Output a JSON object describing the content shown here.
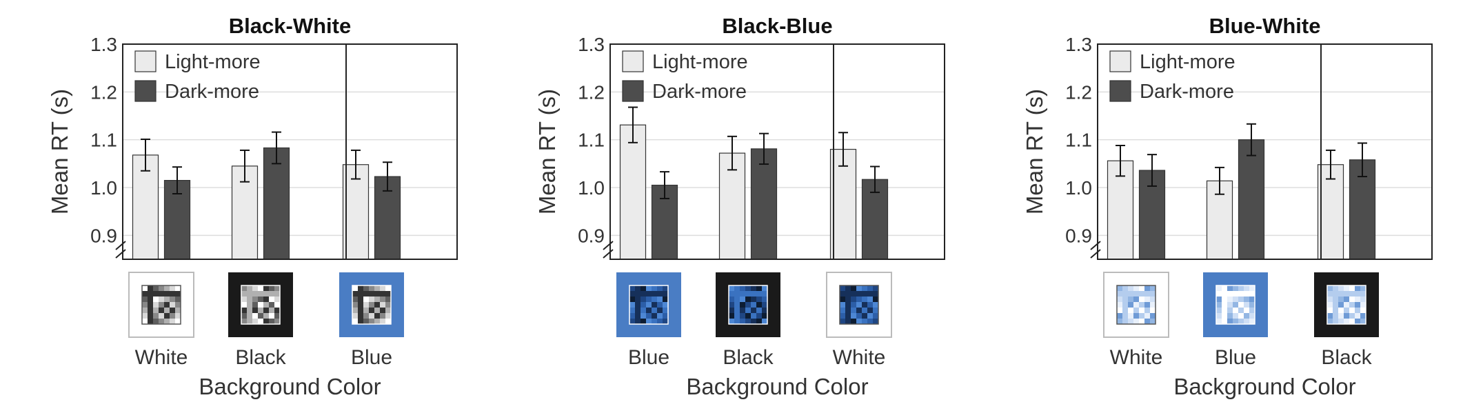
{
  "figure": {
    "colors": {
      "light_bar": "#ebebeb",
      "dark_bar": "#4d4d4d",
      "axis": "#222222",
      "grid": "#dddddd",
      "swatch_white": "#ffffff",
      "swatch_black": "#1a1a1a",
      "swatch_blue": "#4a7dc4"
    }
  },
  "chart_data": [
    {
      "type": "bar",
      "title": "Black-White",
      "ylabel": "Mean RT (s)",
      "xlabel": "Background Color",
      "ylim": [
        0.88,
        1.3
      ],
      "yticks": [
        "0.9",
        "1.0",
        "1.1",
        "1.2",
        "1.3"
      ],
      "axis_break": true,
      "grid": true,
      "legend_position": "top-left",
      "categories": [
        "White",
        "Black",
        "Blue"
      ],
      "category_backgrounds": [
        "white",
        "black",
        "blue"
      ],
      "stimulus_palette": "gray",
      "series": [
        {
          "name": "Light-more",
          "values": [
            1.068,
            1.045,
            1.048
          ],
          "errors": [
            0.033,
            0.033,
            0.03
          ]
        },
        {
          "name": "Dark-more",
          "values": [
            1.015,
            1.083,
            1.023
          ],
          "errors": [
            0.028,
            0.033,
            0.03
          ]
        }
      ]
    },
    {
      "type": "bar",
      "title": "Black-Blue",
      "ylabel": "Mean RT (s)",
      "xlabel": "Background Color",
      "ylim": [
        0.88,
        1.3
      ],
      "yticks": [
        "0.9",
        "1.0",
        "1.1",
        "1.2",
        "1.3"
      ],
      "axis_break": true,
      "grid": true,
      "legend_position": "top-left",
      "categories": [
        "Blue",
        "Black",
        "White"
      ],
      "category_backgrounds": [
        "blue",
        "black",
        "white"
      ],
      "stimulus_palette": "darkblue",
      "series": [
        {
          "name": "Light-more",
          "values": [
            1.131,
            1.072,
            1.08
          ],
          "errors": [
            0.037,
            0.035,
            0.035
          ]
        },
        {
          "name": "Dark-more",
          "values": [
            1.005,
            1.081,
            1.017
          ],
          "errors": [
            0.028,
            0.032,
            0.027
          ]
        }
      ]
    },
    {
      "type": "bar",
      "title": "Blue-White",
      "ylabel": "Mean RT (s)",
      "xlabel": "Background Color",
      "ylim": [
        0.88,
        1.3
      ],
      "yticks": [
        "0.9",
        "1.0",
        "1.1",
        "1.2",
        "1.3"
      ],
      "axis_break": true,
      "grid": true,
      "legend_position": "top-left",
      "categories": [
        "White",
        "Blue",
        "Black"
      ],
      "category_backgrounds": [
        "white",
        "blue",
        "black"
      ],
      "stimulus_palette": "lightblue",
      "series": [
        {
          "name": "Light-more",
          "values": [
            1.056,
            1.014,
            1.048
          ],
          "errors": [
            0.032,
            0.028,
            0.03
          ]
        },
        {
          "name": "Dark-more",
          "values": [
            1.036,
            1.1,
            1.058
          ],
          "errors": [
            0.033,
            0.033,
            0.035
          ]
        }
      ]
    }
  ]
}
